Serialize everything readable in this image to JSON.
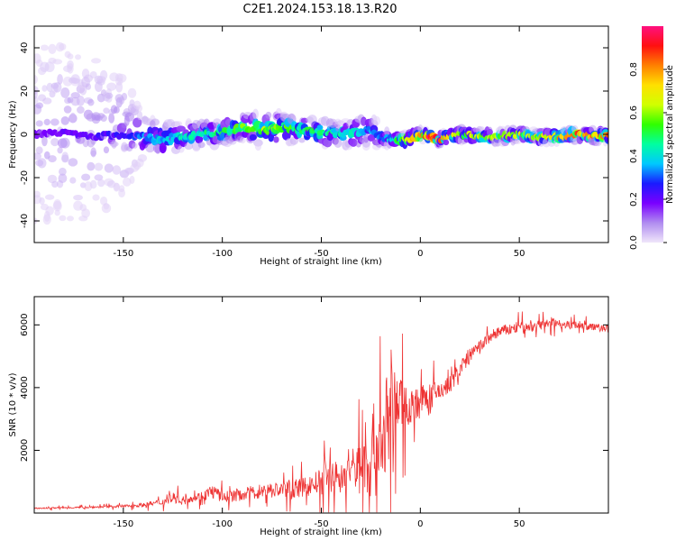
{
  "figure": {
    "title": "C2E1.2024.153.18.13.R20"
  },
  "chart_data": [
    {
      "type": "heatmap",
      "title": "C2E1.2024.153.18.13.R20",
      "xlabel": "Height of straight line (km)",
      "ylabel": "Frequency (Hz)",
      "xlim": [
        -195,
        95
      ],
      "ylim": [
        -50,
        50
      ],
      "xticks": [
        -150,
        -100,
        -50,
        0,
        50
      ],
      "yticks": [
        -40,
        -20,
        0,
        20,
        40
      ],
      "colorbar": {
        "label": "Normalized spectral amplitude",
        "range": [
          0,
          1
        ],
        "ticks": [
          0.0,
          0.2,
          0.4,
          0.6,
          0.8
        ],
        "colors": [
          "#f0e6fa",
          "#b08cf0",
          "#7a00ff",
          "#1a1aff",
          "#00c8ff",
          "#00ffa0",
          "#30ff00",
          "#d0ff00",
          "#ffe000",
          "#ff8000",
          "#ff1010",
          "#ff1080"
        ]
      },
      "ridge": {
        "x": [
          -195,
          -180,
          -165,
          -150,
          -140,
          -130,
          -120,
          -110,
          -100,
          -90,
          -80,
          -70,
          -60,
          -50,
          -40,
          -30,
          -25,
          -20,
          -15,
          -10,
          -5,
          0,
          5,
          10,
          15,
          20,
          30,
          40,
          50,
          60,
          70,
          80,
          95
        ],
        "frequency": [
          0,
          1,
          -1,
          0,
          -1,
          -2,
          -1,
          0,
          1,
          3,
          2,
          3,
          2,
          1,
          0,
          1,
          2,
          -1,
          -2,
          -3,
          -2,
          0,
          -1,
          -2,
          -1,
          0,
          -1,
          -1,
          0,
          -1,
          -1,
          0,
          -1
        ],
        "amplitude": [
          0.18,
          0.2,
          0.22,
          0.25,
          0.33,
          0.38,
          0.42,
          0.45,
          0.48,
          0.55,
          0.58,
          0.55,
          0.5,
          0.48,
          0.45,
          0.4,
          0.35,
          0.3,
          0.4,
          0.55,
          0.7,
          0.85,
          0.95,
          0.8,
          0.7,
          0.6,
          0.65,
          0.6,
          0.62,
          0.7,
          0.75,
          0.8,
          0.78
        ],
        "spread_hz": [
          40,
          40,
          38,
          30,
          10,
          8,
          6,
          6,
          6,
          6,
          8,
          7,
          6,
          6,
          6,
          7,
          8,
          5,
          3,
          3,
          3,
          3,
          3,
          3,
          3,
          3,
          3,
          3,
          3,
          3,
          3,
          3,
          3
        ]
      }
    },
    {
      "type": "line",
      "xlabel": "Height of straight line (km)",
      "ylabel": "SNR (10 * v/v)",
      "xlim": [
        -195,
        95
      ],
      "ylim": [
        0,
        6900
      ],
      "xticks": [
        -150,
        -100,
        -50,
        0,
        50
      ],
      "yticks": [
        2000,
        4000,
        6000
      ],
      "series": [
        {
          "color": "#ee3333",
          "x": [
            -195,
            -180,
            -170,
            -160,
            -150,
            -140,
            -130,
            -125,
            -120,
            -110,
            -105,
            -100,
            -90,
            -80,
            -70,
            -60,
            -50,
            -45,
            -40,
            -35,
            -30,
            -25,
            -20,
            -18,
            -15,
            -10,
            -5,
            0,
            5,
            10,
            15,
            20,
            25,
            30,
            35,
            40,
            45,
            50,
            55,
            60,
            65,
            70,
            75,
            80,
            85,
            90,
            95
          ],
          "y": [
            150,
            170,
            180,
            200,
            220,
            260,
            350,
            500,
            420,
            550,
            700,
            500,
            600,
            700,
            750,
            800,
            1000,
            1200,
            1100,
            1400,
            1500,
            1800,
            2200,
            2600,
            3300,
            3500,
            3400,
            3600,
            3700,
            3900,
            4100,
            4600,
            5000,
            5300,
            5600,
            5800,
            5850,
            5950,
            5900,
            6000,
            6050,
            6050,
            6000,
            6000,
            5950,
            5900,
            5900
          ],
          "noise": [
            30,
            40,
            50,
            60,
            70,
            100,
            200,
            300,
            200,
            250,
            400,
            300,
            350,
            400,
            450,
            500,
            700,
            900,
            800,
            1100,
            1500,
            2500,
            3000,
            3200,
            2500,
            1500,
            1000,
            800,
            700,
            600,
            500,
            450,
            400,
            350,
            350,
            300,
            300,
            280,
            280,
            250,
            250,
            220,
            220,
            200,
            200,
            200,
            200
          ]
        }
      ]
    }
  ]
}
